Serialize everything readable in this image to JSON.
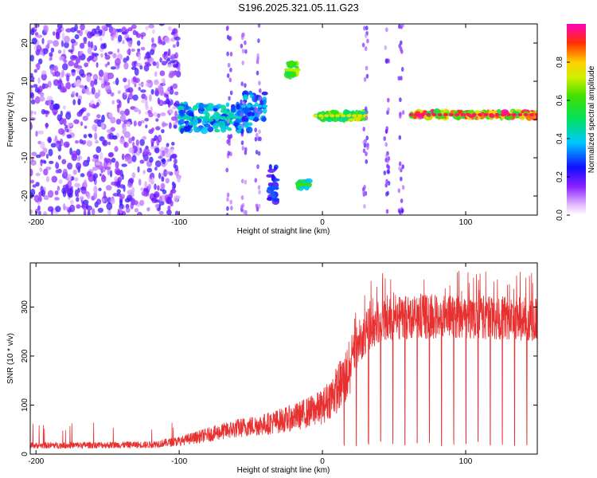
{
  "title": "S196.2025.321.05.11.G23",
  "chart_data": [
    {
      "type": "heatmap",
      "name": "spectrogram",
      "xlabel": "Height of straight line (km)",
      "ylabel": "Frequency (Hz)",
      "xlim": [
        -204,
        150
      ],
      "ylim": [
        -25,
        25
      ],
      "xticks": [
        -200,
        -100,
        0,
        100
      ],
      "yticks": [
        -20,
        -10,
        0,
        10,
        20
      ],
      "colorbar": {
        "label": "Normalized spectral amplitude",
        "range": [
          0.0,
          1.0
        ],
        "ticks": [
          0.0,
          0.2,
          0.4,
          0.6,
          0.8
        ]
      },
      "features": [
        {
          "name": "noise-region",
          "x_range": [
            -204,
            -100
          ],
          "freq_range": [
            -25,
            25
          ],
          "amplitude": 0.15
        },
        {
          "name": "ridge-a",
          "x_range": [
            -100,
            -50
          ],
          "freq_range": [
            -3,
            4
          ],
          "amplitude": 0.45
        },
        {
          "name": "ridge-b",
          "x_range": [
            -55,
            -40
          ],
          "freq_range": [
            0,
            7
          ],
          "amplitude": 0.4
        },
        {
          "name": "blob-c",
          "x_range": [
            -25,
            -17
          ],
          "freq_range": [
            11,
            15
          ],
          "amplitude": 0.7
        },
        {
          "name": "blob-d",
          "x_range": [
            -37,
            -32
          ],
          "freq_range": [
            -24,
            -12
          ],
          "amplitude": 0.3
        },
        {
          "name": "blob-e",
          "x_range": [
            -17,
            -9
          ],
          "freq_range": [
            -18,
            -16
          ],
          "amplitude": 0.6
        },
        {
          "name": "line-f",
          "x_range": [
            -5,
            30
          ],
          "freq_range": [
            0,
            2
          ],
          "amplitude": 0.75
        },
        {
          "name": "strong-line",
          "x_range": [
            62,
            150
          ],
          "freq_range": [
            0.5,
            2
          ],
          "amplitude": 0.95
        }
      ]
    },
    {
      "type": "line",
      "name": "snr",
      "xlabel": "Height of straight line (km)",
      "ylabel": "SNR (10 * v/v)",
      "xlim": [
        -204,
        150
      ],
      "ylim": [
        0,
        390
      ],
      "xticks": [
        -200,
        -100,
        0,
        100
      ],
      "yticks": [
        0,
        100,
        200,
        300
      ],
      "series": [
        {
          "name": "SNR",
          "color": "#e83030",
          "envelope_x": [
            -204,
            -120,
            -100,
            -80,
            -60,
            -40,
            -20,
            0,
            10,
            20,
            30,
            40,
            60,
            100,
            150
          ],
          "envelope_y": [
            20,
            22,
            30,
            45,
            60,
            70,
            85,
            110,
            150,
            200,
            250,
            270,
            280,
            280,
            275
          ],
          "dip_spacing_km": 8.5,
          "dip_start_km": 15,
          "dip_min_value": 15
        }
      ]
    }
  ]
}
